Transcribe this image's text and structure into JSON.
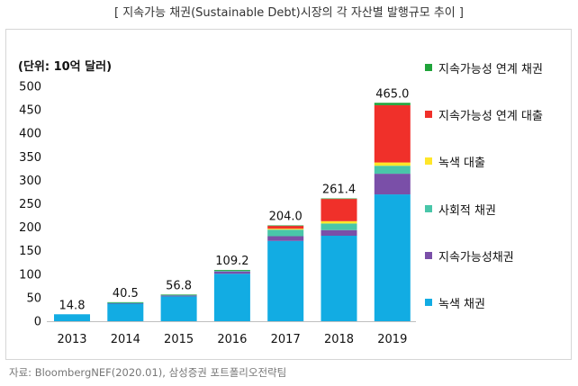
{
  "title": "[ 지속가능 채권(Sustainable Debt)시장의 각 자산별 발행규모 추이 ]",
  "source": "자료: BloombergNEF(2020.01), 삼성증권 포트폴리오전략팀",
  "chart_data": {
    "type": "bar",
    "stacked": true,
    "unit_label": "(단위: 10억 달러)",
    "categories": [
      "2013",
      "2014",
      "2015",
      "2016",
      "2017",
      "2018",
      "2019"
    ],
    "totals": [
      14.8,
      40.5,
      56.8,
      109.2,
      204.0,
      261.4,
      465.0
    ],
    "total_labels": [
      "14.8",
      "40.5",
      "56.8",
      "109.2",
      "204.0",
      "261.4",
      "465.0"
    ],
    "ylim": [
      0,
      500
    ],
    "yticks": [
      0,
      50,
      100,
      150,
      200,
      250,
      300,
      350,
      400,
      450,
      500
    ],
    "series": [
      {
        "name": "녹색 채권",
        "color": "#12ace3",
        "values": [
          14.8,
          37.5,
          52.8,
          101.0,
          171.0,
          182.0,
          270.0
        ]
      },
      {
        "name": "지속가능성채권",
        "color": "#7a4fa8",
        "values": [
          0.0,
          1.0,
          2.0,
          5.0,
          10.0,
          12.0,
          44.0
        ]
      },
      {
        "name": "사회적 채권",
        "color": "#49c6a9",
        "values": [
          0.0,
          1.0,
          1.0,
          1.5,
          14.0,
          14.0,
          17.0
        ]
      },
      {
        "name": "녹색 대출",
        "color": "#ffe629",
        "values": [
          0.0,
          0.0,
          0.0,
          0.0,
          2.0,
          5.0,
          7.0
        ]
      },
      {
        "name": "지속가능성 연계 대출",
        "color": "#f0302a",
        "values": [
          0.0,
          0.0,
          0.0,
          0.0,
          6.0,
          47.4,
          122.0
        ]
      },
      {
        "name": "지속가능성 연계 채권",
        "color": "#1fa33a",
        "values": [
          0.0,
          1.0,
          1.0,
          1.7,
          1.0,
          1.0,
          5.0
        ]
      }
    ],
    "legend_order": [
      "지속가능성 연계 채권",
      "지속가능성 연계 대출",
      "녹색 대출",
      "사회적 채권",
      "지속가능성채권",
      "녹색 채권"
    ],
    "legend_position": "right",
    "grid": false
  }
}
